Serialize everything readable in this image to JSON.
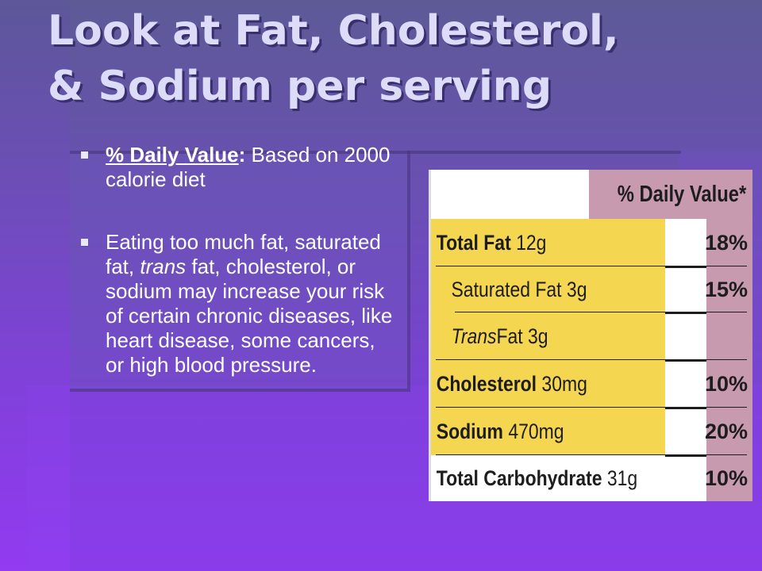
{
  "slide": {
    "title_line1": "Look at Fat, Cholesterol,",
    "title_line2": "& Sodium per serving"
  },
  "bullets": {
    "first": {
      "term": "% Daily Value",
      "colon": ":",
      "text": " Based on 2000 calorie diet"
    },
    "second": {
      "text_before": "Eating too much fat, saturated fat, ",
      "italic": "trans",
      "text_after": " fat, cholesterol, or sodium may increase your risk of certain chronic diseases, like heart disease, some cancers, or high blood pressure."
    }
  },
  "nutrition_label": {
    "header": "% Daily Value*",
    "rows": [
      {
        "name": "Total Fat",
        "amount": " 12g",
        "percent": "18%"
      },
      {
        "name": "Saturated Fat 3g",
        "amount": "",
        "percent": "15%"
      },
      {
        "name": "Trans",
        "amount": " Fat 3g",
        "percent": ""
      },
      {
        "name": "Cholesterol",
        "amount": " 30mg",
        "percent": "10%"
      },
      {
        "name": "Sodium",
        "amount": " 470mg",
        "percent": "20%"
      },
      {
        "name": "Total Carbohydrate",
        "amount": " 31g",
        "percent": "10%"
      }
    ]
  },
  "colors": {
    "label_yellow": "#f5d650",
    "label_pink": "#c79ab0"
  }
}
